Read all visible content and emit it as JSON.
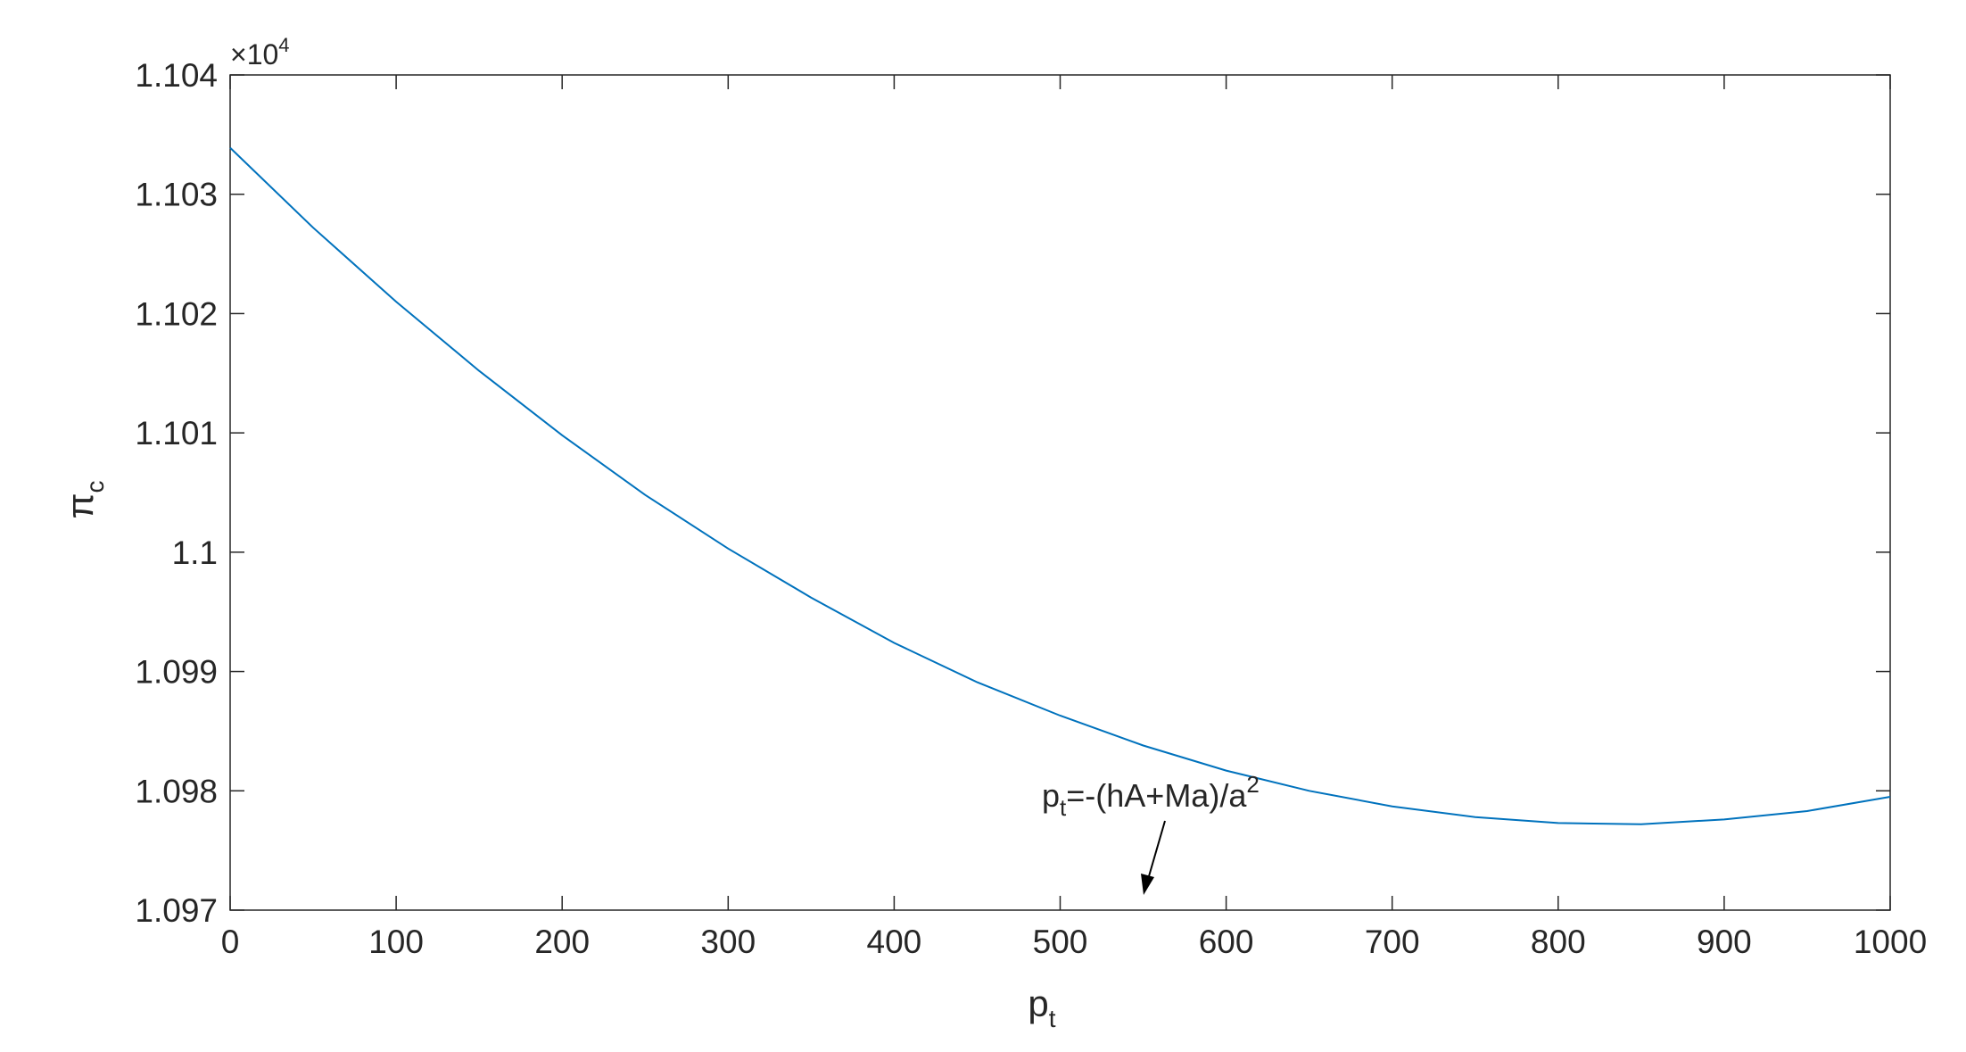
{
  "chart_data": {
    "type": "line",
    "xlabel": {
      "main": "p",
      "sub": "t"
    },
    "ylabel": {
      "main": "π",
      "sub": "c"
    },
    "xlim": [
      0,
      1000
    ],
    "ylim": [
      1.097,
      1.104
    ],
    "y_multiplier": {
      "base": "×10",
      "exponent": "4"
    },
    "xticks": [
      0,
      100,
      200,
      300,
      400,
      500,
      600,
      700,
      800,
      900,
      1000
    ],
    "xtick_labels": [
      "0",
      "100",
      "200",
      "300",
      "400",
      "500",
      "600",
      "700",
      "800",
      "900",
      "1000"
    ],
    "yticks": [
      1.097,
      1.098,
      1.099,
      1.1,
      1.101,
      1.102,
      1.103,
      1.104
    ],
    "ytick_labels": [
      "1.097",
      "1.098",
      "1.099",
      "1.1",
      "1.101",
      "1.102",
      "1.103",
      "1.104"
    ],
    "grid": false,
    "series": [
      {
        "color": "#0072BD",
        "x": [
          0,
          50,
          100,
          150,
          200,
          250,
          300,
          350,
          400,
          450,
          500,
          550,
          600,
          650,
          700,
          750,
          800,
          850,
          900,
          950,
          1000
        ],
        "y": [
          1.10339,
          1.10272,
          1.1021,
          1.10152,
          1.10098,
          1.10048,
          1.10003,
          1.09962,
          1.09924,
          1.09891,
          1.09863,
          1.09838,
          1.09817,
          1.098,
          1.09787,
          1.09778,
          1.09773,
          1.09772,
          1.09776,
          1.09783,
          1.09795
        ]
      }
    ],
    "annotation": {
      "main": "p",
      "sub": "t",
      "rest": "=-(hA+Ma)/a",
      "sup": "2",
      "point": {
        "x": 552,
        "y": 1.09722
      }
    }
  }
}
